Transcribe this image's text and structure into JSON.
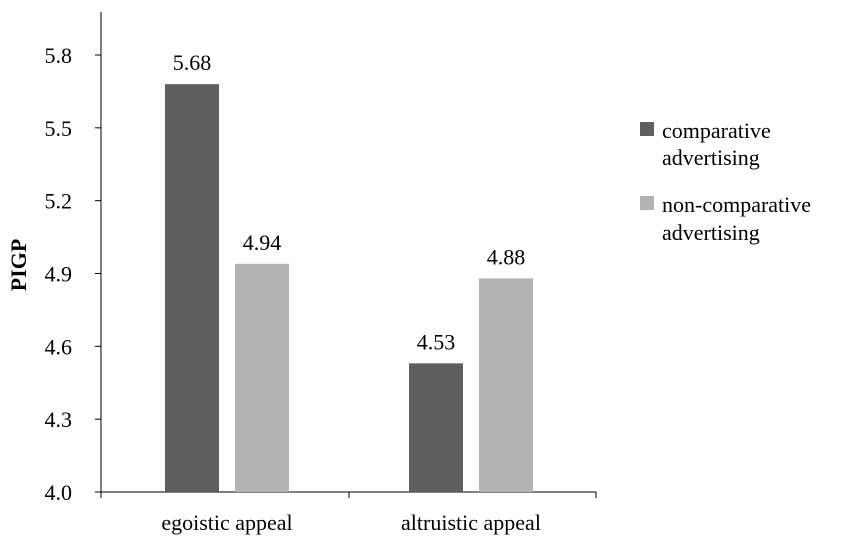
{
  "chart_data": {
    "type": "bar",
    "title": "",
    "xlabel": "",
    "ylabel": "PIGP",
    "categories": [
      "egoistic appeal",
      "altruistic appeal"
    ],
    "series": [
      {
        "name": "comparative advertising",
        "name_lines": [
          "comparative",
          "advertising"
        ],
        "values": [
          5.68,
          4.53
        ],
        "color": "#5f5f5f"
      },
      {
        "name": "non-comparative advertising",
        "name_lines": [
          "non-comparative",
          "advertising"
        ],
        "values": [
          4.94,
          4.88
        ],
        "color": "#b3b3b3"
      }
    ],
    "data_labels": [
      [
        "5.68",
        "4.53"
      ],
      [
        "4.94",
        "4.88"
      ]
    ],
    "ylim": [
      4.0,
      5.8
    ],
    "yticks": [
      "4.0",
      "4.3",
      "4.6",
      "4.9",
      "5.2",
      "5.5",
      "5.8"
    ],
    "grid": false,
    "legend_position": "right"
  }
}
